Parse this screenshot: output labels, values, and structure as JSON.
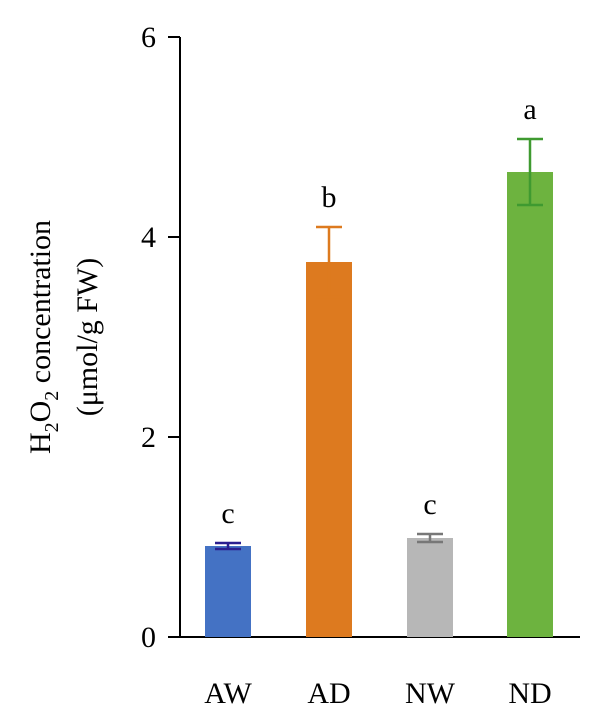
{
  "chart_data": {
    "type": "bar",
    "categories": [
      "AW",
      "AD",
      "NW",
      "ND"
    ],
    "values": [
      0.91,
      3.75,
      0.99,
      4.65
    ],
    "errors": [
      0.03,
      0.35,
      0.04,
      0.33
    ],
    "significance": [
      "c",
      "b",
      "c",
      "a"
    ],
    "colors": [
      "#4472c4",
      "#dd7a1f",
      "#b7b7b7",
      "#6db33f"
    ],
    "error_colors": [
      "#2b1f8f",
      "#dd7a1f",
      "#777777",
      "#3f9a30"
    ],
    "ylim": [
      0,
      6
    ],
    "yticks": [
      0,
      2,
      4,
      6
    ],
    "ylabel": {
      "line1_main_a": "H",
      "line1_sub_a": "2",
      "line1_main_b": "O",
      "line1_sub_b": "2",
      "line1_rest": " concentration",
      "line2": "(μmol/g FW)"
    },
    "xlabel": "",
    "title": "",
    "grid": false
  }
}
